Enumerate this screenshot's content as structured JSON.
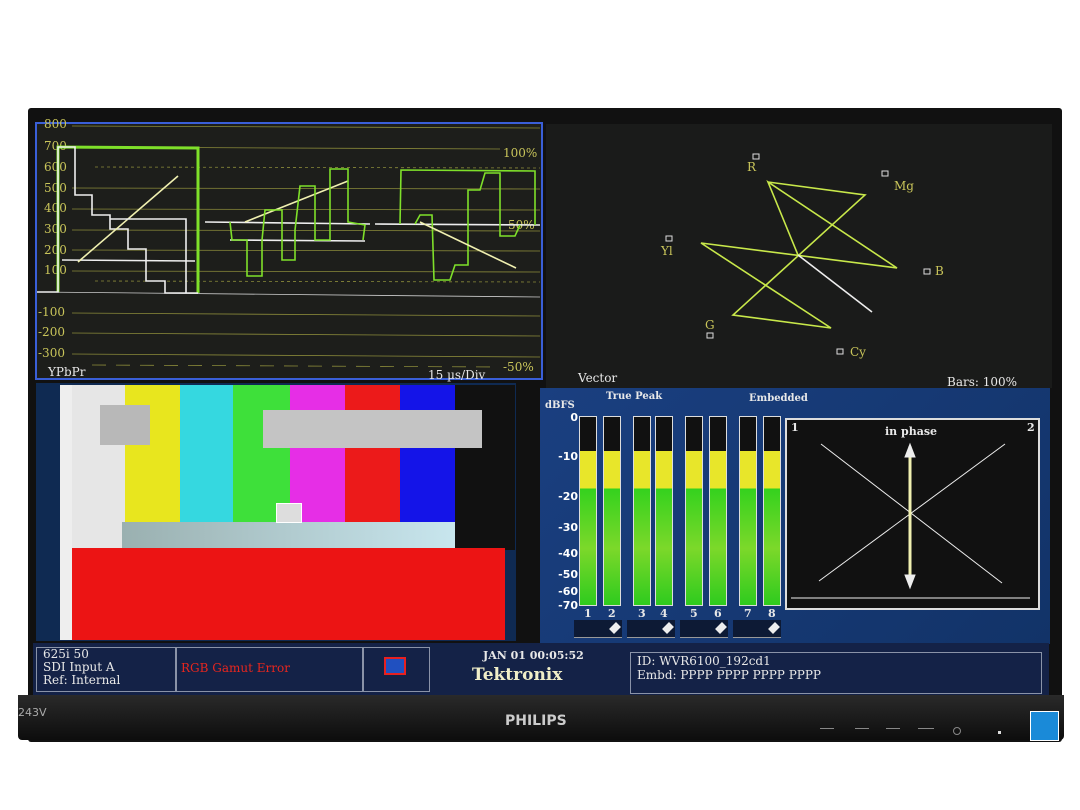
{
  "waveform": {
    "y_ticks": [
      "800",
      "700",
      "600",
      "500",
      "400",
      "300",
      "200",
      "100",
      "-100",
      "-200",
      "-300"
    ],
    "pct_labels": [
      "100%",
      "50%",
      "-50%"
    ],
    "mode": "YPbPr",
    "timebase": "15 µs/Div",
    "border_color": "#3a5fd8"
  },
  "vector": {
    "title": "Vector",
    "bars": "Bars: 100%",
    "targets": [
      "R",
      "Mg",
      "Yl",
      "B",
      "G",
      "Cy"
    ]
  },
  "audio": {
    "unit": "dBFS",
    "true_peak": "True Peak",
    "embedded": "Embedded",
    "scale": [
      "0",
      "-10",
      "-20",
      "-30",
      "-40",
      "-50",
      "-60",
      "-70"
    ],
    "channels": [
      "1",
      "2",
      "3",
      "4",
      "5",
      "6",
      "7",
      "8"
    ],
    "phase": {
      "title": "in phase",
      "left": "1",
      "right": "2"
    }
  },
  "picture": {
    "bars": [
      "#e6e6e6",
      "#e8e61e",
      "#35d8e0",
      "#3ee03a",
      "#e62ee6",
      "#ec1a1a",
      "#1414e8",
      "#111111"
    ]
  },
  "status": {
    "format": "625i 50",
    "input": "SDI Input A",
    "ref": "Ref: Internal",
    "error": "RGB Gamut Error",
    "datetime": "JAN 01 00:05:52",
    "brand": "Tektronix",
    "id": "ID: WVR6100_192cd1",
    "embd": "Embd: PPPP PPPP PPPP PPPP"
  },
  "monitor": {
    "brand": "PHILIPS",
    "model": "243V"
  }
}
